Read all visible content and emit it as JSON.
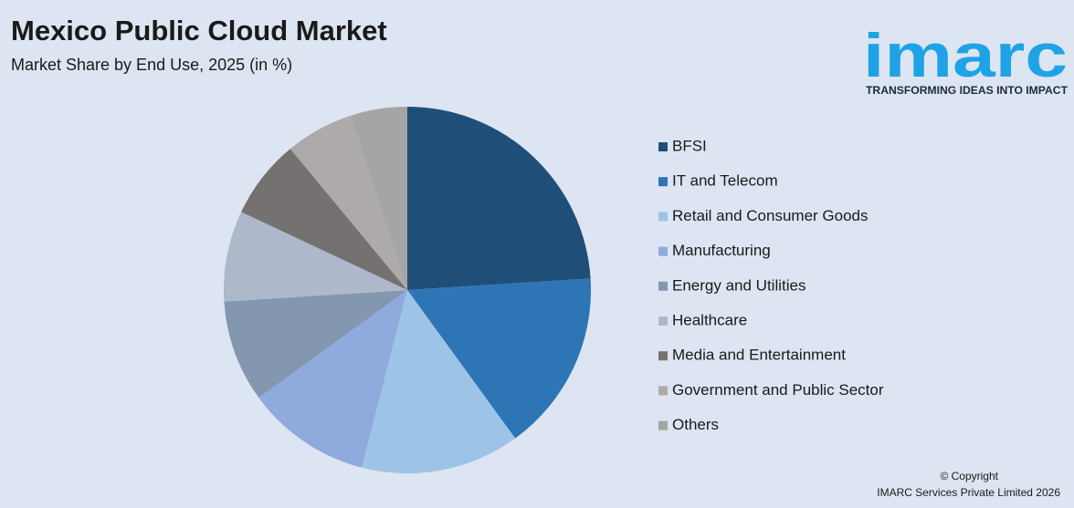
{
  "chart_data": {
    "type": "pie",
    "title": "Mexico Public Cloud Market",
    "subtitle": "Market Share by End Use, 2025 (in %)",
    "categories": [
      "BFSI",
      "IT and Telecom",
      "Retail and Consumer Goods",
      "Manufacturing",
      "Energy and Utilities",
      "Healthcare",
      "Media and Entertainment",
      "Government and Public Sector",
      "Others"
    ],
    "values": [
      24,
      16,
      14,
      11,
      9,
      8,
      7,
      6,
      5
    ],
    "colors": [
      "#1f4e79",
      "#2e75b6",
      "#9dc3e6",
      "#8faadc",
      "#8497b0",
      "#adb9ca",
      "#767171",
      "#aeaaaa",
      "#a5a5a5"
    ],
    "legend": "right"
  },
  "branding": {
    "logo": "imarc",
    "tagline": "TRANSFORMING IDEAS INTO IMPACT"
  },
  "footer": {
    "copyright": "© Copyright",
    "company": "IMARC Services Private Limited 2026"
  }
}
